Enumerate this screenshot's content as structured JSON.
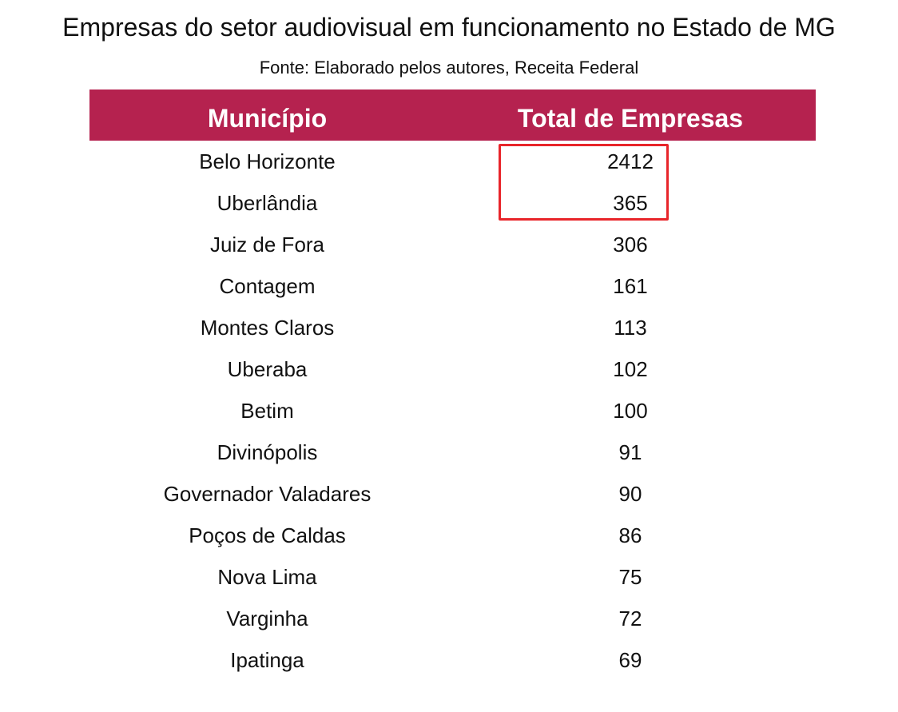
{
  "title": "Empresas do setor audiovisual em funcionamento no Estado de MG",
  "subtitle": "Fonte: Elaborado pelos autores, Receita Federal",
  "colors": {
    "header_bg": "#B5224F",
    "header_text": "#FFFFFF",
    "highlight_border": "#E8252A"
  },
  "chart_data": {
    "type": "table",
    "title": "Empresas do setor audiovisual em funcionamento no Estado de MG",
    "subtitle": "Fonte: Elaborado pelos autores, Receita Federal",
    "columns": [
      "Município",
      "Total de Empresas"
    ],
    "rows": [
      [
        "Belo Horizonte",
        "2412"
      ],
      [
        "Uberlândia",
        "365"
      ],
      [
        "Juiz de Fora",
        "306"
      ],
      [
        "Contagem",
        "161"
      ],
      [
        "Montes Claros",
        "113"
      ],
      [
        "Uberaba",
        "102"
      ],
      [
        "Betim",
        "100"
      ],
      [
        "Divinópolis",
        "91"
      ],
      [
        "Governador Valadares",
        "90"
      ],
      [
        "Poços de Caldas",
        "86"
      ],
      [
        "Nova Lima",
        "75"
      ],
      [
        "Varginha",
        "72"
      ],
      [
        "Ipatinga",
        "69"
      ]
    ],
    "highlighted_cells": [
      {
        "row": 0,
        "column": 1
      },
      {
        "row": 1,
        "column": 1
      }
    ]
  }
}
